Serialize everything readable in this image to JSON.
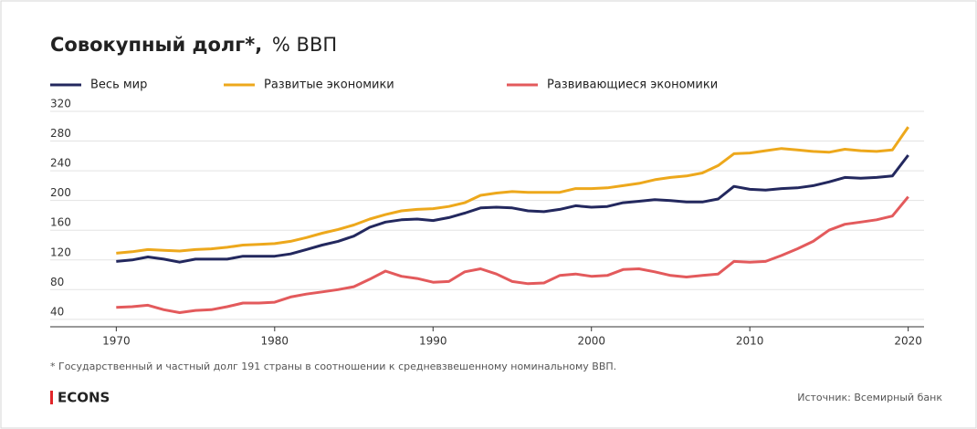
{
  "chart_data": {
    "type": "line",
    "title": "Совокупный долг*,",
    "title_unit": "% ВВП",
    "x": [
      1970,
      1971,
      1972,
      1973,
      1974,
      1975,
      1976,
      1977,
      1978,
      1979,
      1980,
      1981,
      1982,
      1983,
      1984,
      1985,
      1986,
      1987,
      1988,
      1989,
      1990,
      1991,
      1992,
      1993,
      1994,
      1995,
      1996,
      1997,
      1998,
      1999,
      2000,
      2001,
      2002,
      2003,
      2004,
      2005,
      2006,
      2007,
      2008,
      2009,
      2010,
      2011,
      2012,
      2013,
      2014,
      2015,
      2016,
      2017,
      2018,
      2019,
      2020
    ],
    "series": [
      {
        "name": "Весь мир",
        "color": "#23285e",
        "values": [
          118,
          120,
          124,
          121,
          117,
          121,
          121,
          121,
          125,
          125,
          125,
          128,
          134,
          140,
          145,
          152,
          164,
          171,
          174,
          175,
          173,
          177,
          183,
          190,
          191,
          190,
          186,
          185,
          188,
          193,
          191,
          192,
          197,
          199,
          201,
          200,
          198,
          198,
          202,
          219,
          215,
          214,
          216,
          217,
          220,
          225,
          231,
          230,
          231,
          233,
          261
        ]
      },
      {
        "name": "Развитые экономики",
        "color": "#eda81c",
        "values": [
          129,
          131,
          134,
          133,
          132,
          134,
          135,
          137,
          140,
          141,
          142,
          145,
          150,
          156,
          161,
          167,
          175,
          181,
          186,
          188,
          189,
          192,
          197,
          207,
          210,
          212,
          211,
          211,
          211,
          216,
          216,
          217,
          220,
          223,
          228,
          231,
          233,
          237,
          247,
          263,
          264,
          267,
          270,
          268,
          266,
          265,
          269,
          267,
          266,
          268,
          299
        ]
      },
      {
        "name": "Развивающиеся экономики",
        "color": "#e35a5c",
        "values": [
          56,
          57,
          59,
          53,
          49,
          52,
          53,
          57,
          62,
          62,
          63,
          70,
          74,
          77,
          80,
          84,
          94,
          105,
          98,
          95,
          90,
          91,
          104,
          108,
          101,
          91,
          88,
          89,
          99,
          101,
          98,
          99,
          107,
          108,
          104,
          99,
          97,
          99,
          101,
          118,
          117,
          118,
          126,
          135,
          145,
          160,
          168,
          171,
          174,
          179,
          205
        ]
      }
    ],
    "xlim": [
      1969,
      2021
    ],
    "xticks": [
      1970,
      1980,
      1990,
      2000,
      2010,
      2020
    ],
    "ylim": [
      30,
      320
    ],
    "yticks": [
      40,
      80,
      120,
      160,
      200,
      240,
      280,
      320
    ],
    "grid": true,
    "legend": "top",
    "footnote": "* Государственный и частный долг 191 страны в соотношении к средневзвешенному номинальному ВВП.",
    "brand": "ECONS",
    "source": "Источник: Всемирный банк"
  }
}
